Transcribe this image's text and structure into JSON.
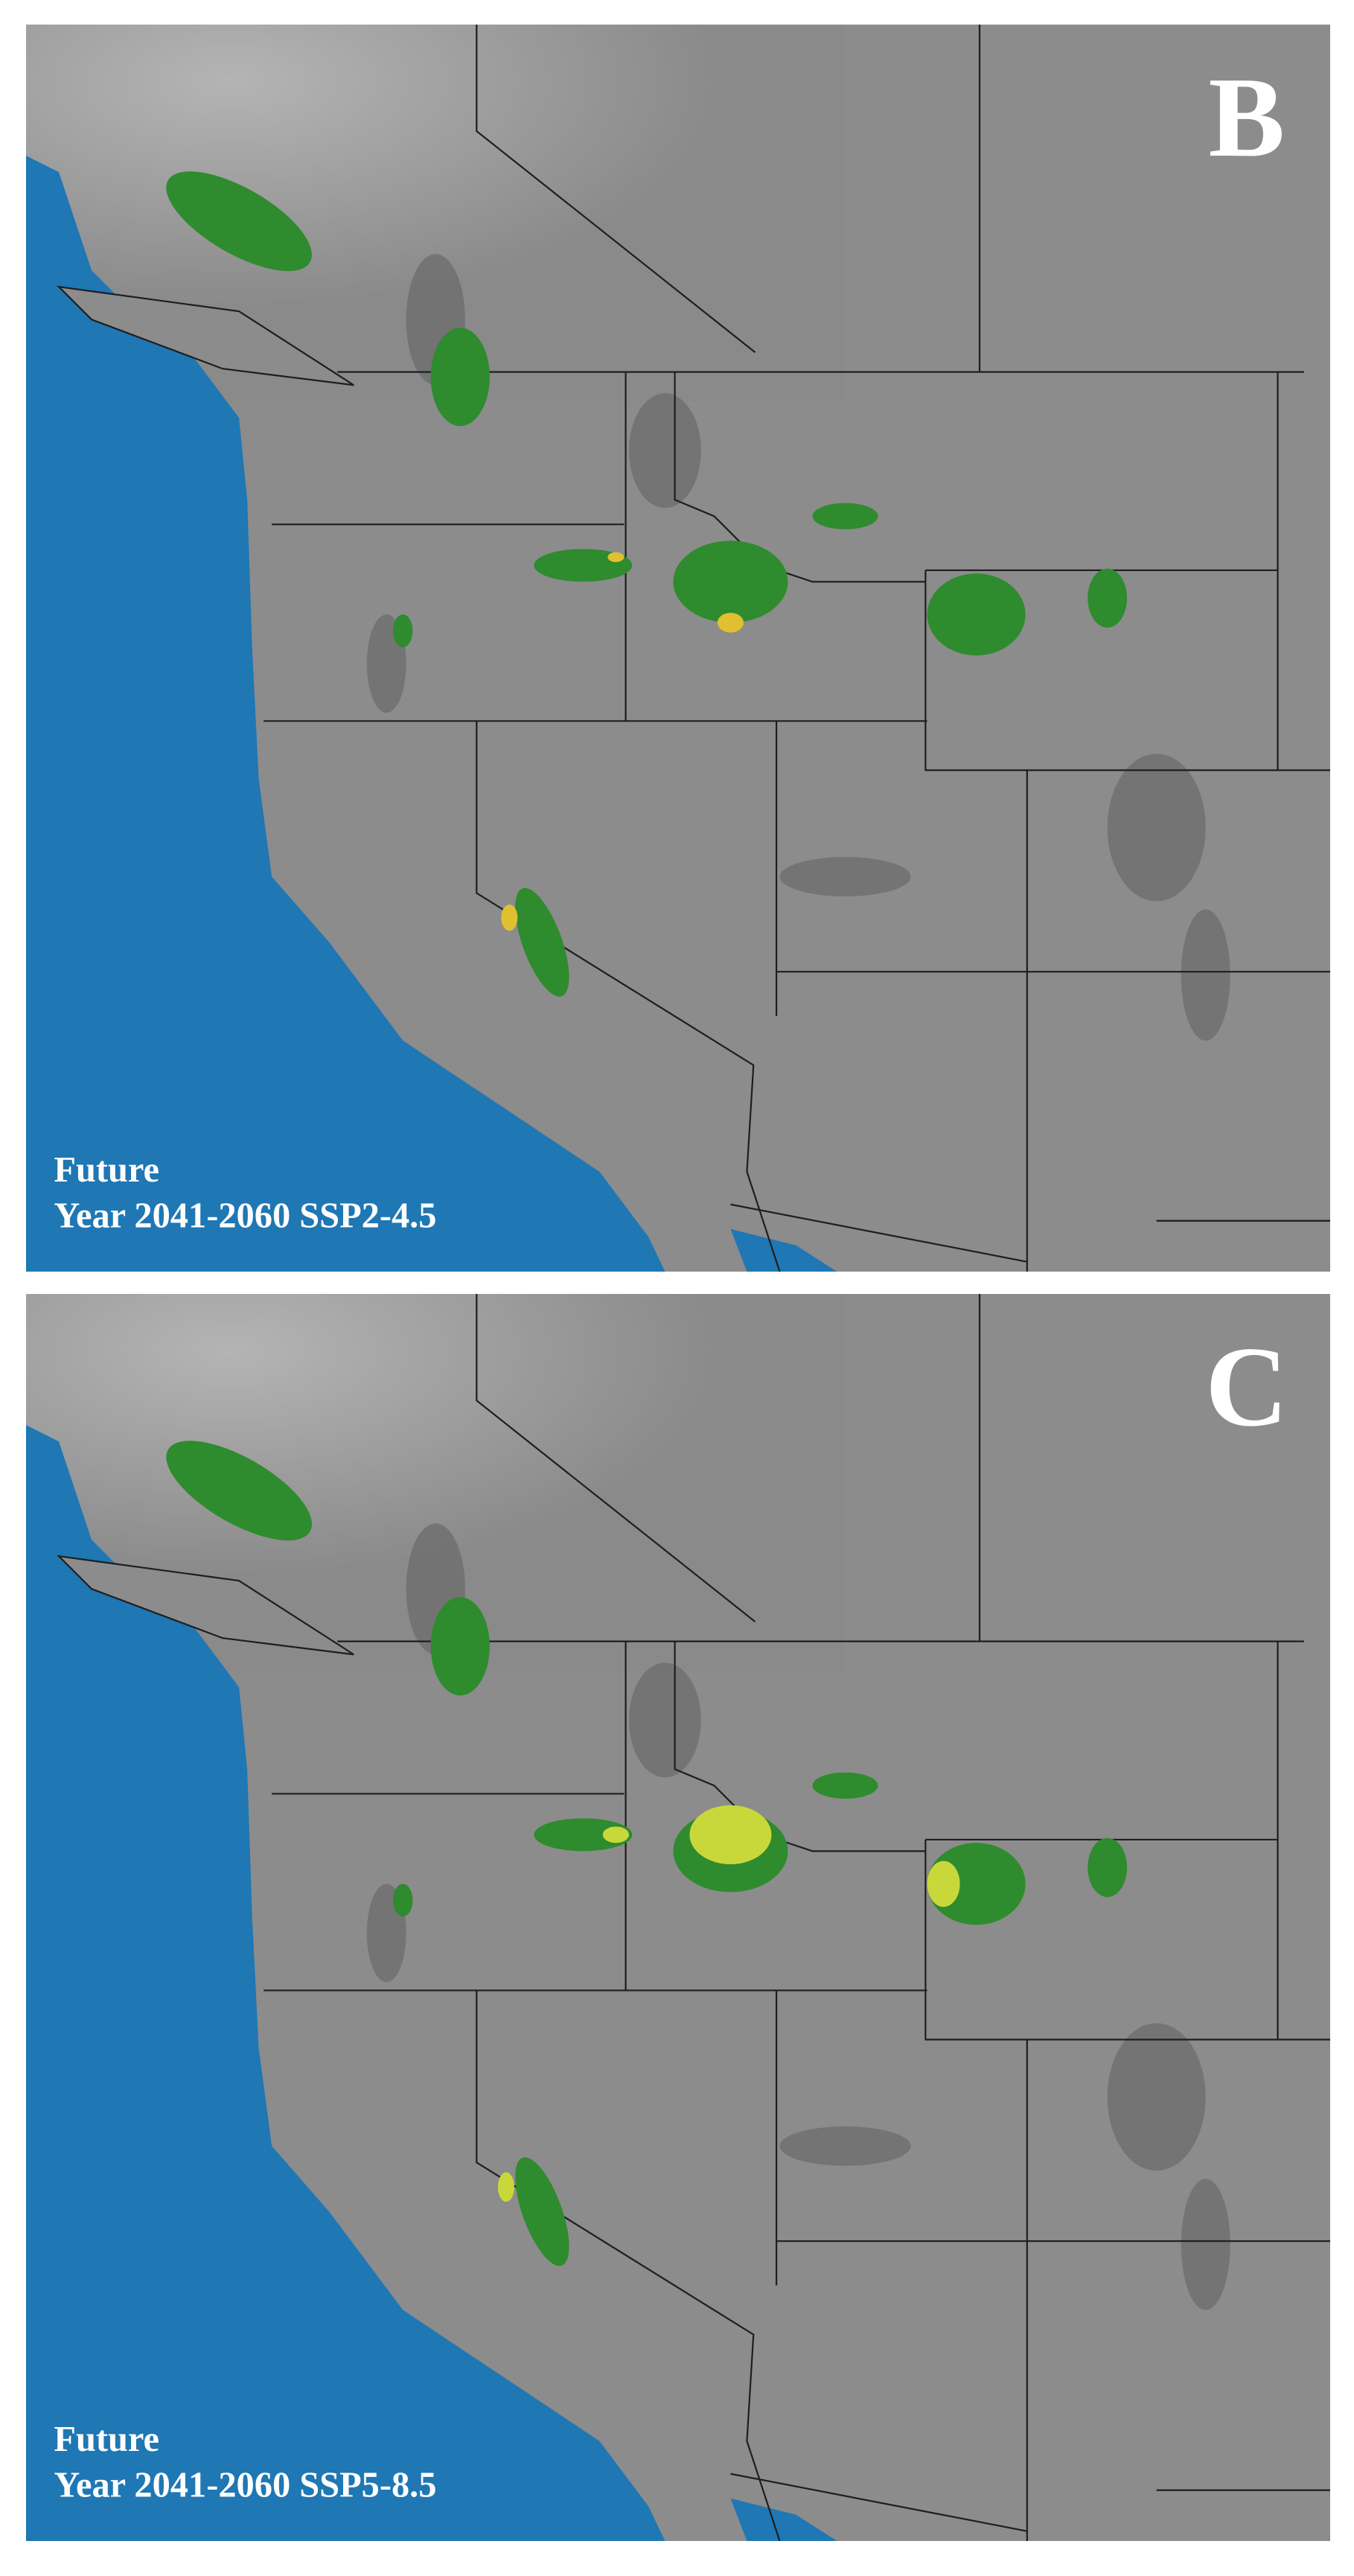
{
  "panels": [
    {
      "label": "B",
      "caption": [
        "Future",
        "Year 2041-2060 SSP2-4.5"
      ]
    },
    {
      "label": "C",
      "caption": [
        "Future",
        "Year 2041-2060 SSP5-8.5"
      ]
    }
  ]
}
